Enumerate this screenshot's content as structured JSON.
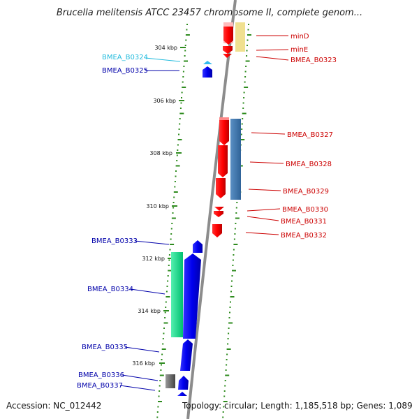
{
  "title": "Brucella melitensis ATCC 23457 chromosome II, complete genom...",
  "accession_text": "Accession: NC_012442",
  "topology_text": "Topology: circular; Length: 1,185,518 bp; Genes: 1,089",
  "colors": {
    "backbone": "#8c8c8c",
    "tick": "#2e8b1e",
    "forward_gene": "#0000ee",
    "reverse_gene": "#ee0000",
    "label_highlight": "#22bbdd"
  },
  "kbp_ticks": [
    "304 kbp",
    "306 kbp",
    "308 kbp",
    "310 kbp",
    "312 kbp",
    "314 kbp",
    "316 kbp"
  ],
  "left_labels": [
    {
      "text": "BMEA_B0324",
      "color": "#22bbdd"
    },
    {
      "text": "BMEA_B0325",
      "color": "#0000aa"
    },
    {
      "text": "BMEA_B0333",
      "color": "#0000aa"
    },
    {
      "text": "BMEA_B0334",
      "color": "#0000aa"
    },
    {
      "text": "BMEA_B0335",
      "color": "#0000aa"
    },
    {
      "text": "BMEA_B0336",
      "color": "#0000aa"
    },
    {
      "text": "BMEA_B0337",
      "color": "#0000aa"
    }
  ],
  "right_labels": [
    {
      "text": "minD",
      "color": "#cc0000"
    },
    {
      "text": "minE",
      "color": "#cc0000"
    },
    {
      "text": "BMEA_B0323",
      "color": "#cc0000"
    },
    {
      "text": "BMEA_B0327",
      "color": "#cc0000"
    },
    {
      "text": "BMEA_B0328",
      "color": "#cc0000"
    },
    {
      "text": "BMEA_B0329",
      "color": "#cc0000"
    },
    {
      "text": "BMEA_B0330",
      "color": "#cc0000"
    },
    {
      "text": "BMEA_B0331",
      "color": "#cc0000"
    },
    {
      "text": "BMEA_B0332",
      "color": "#cc0000"
    }
  ]
}
